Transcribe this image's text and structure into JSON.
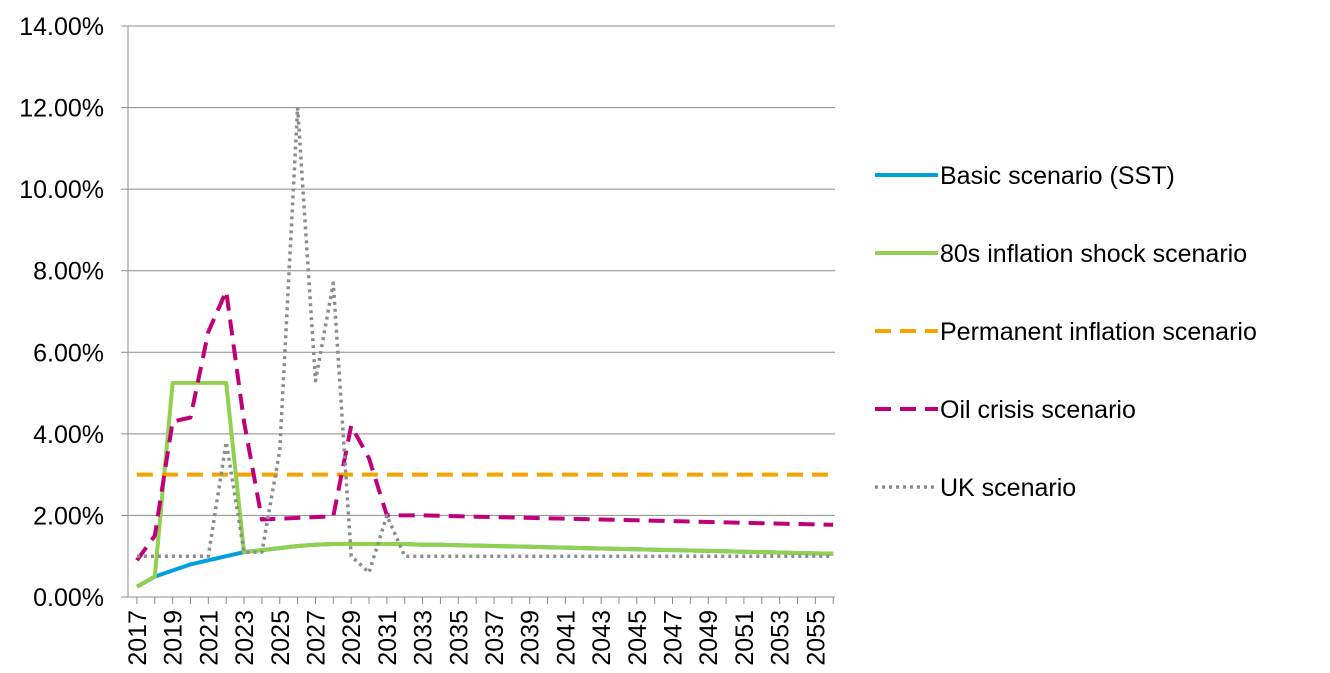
{
  "chart_data": {
    "type": "line",
    "title": "",
    "xlabel": "",
    "ylabel": "",
    "ylim": [
      0,
      0.14
    ],
    "y_ticks": [
      "0.00%",
      "2.00%",
      "4.00%",
      "6.00%",
      "8.00%",
      "10.00%",
      "12.00%",
      "14.00%"
    ],
    "x_tick_labels": [
      "2017",
      "2019",
      "2021",
      "2023",
      "2025",
      "2027",
      "2029",
      "2031",
      "2033",
      "2035",
      "2037",
      "2039",
      "2041",
      "2043",
      "2045",
      "2047",
      "2049",
      "2051",
      "2053",
      "2055"
    ],
    "x": [
      2017,
      2018,
      2019,
      2020,
      2021,
      2022,
      2023,
      2024,
      2025,
      2026,
      2027,
      2028,
      2029,
      2030,
      2031,
      2032,
      2033,
      2034,
      2035,
      2036,
      2037,
      2038,
      2039,
      2040,
      2041,
      2042,
      2043,
      2044,
      2045,
      2046,
      2047,
      2048,
      2049,
      2050,
      2051,
      2052,
      2053,
      2054,
      2055,
      2056
    ],
    "grid": "horizontal",
    "legend_position": "right",
    "series": [
      {
        "name": "Basic scenario (SST)",
        "color": "#00A0DC",
        "style": "solid",
        "values": [
          0.0025,
          0.005,
          0.0065,
          0.008,
          0.009,
          0.01,
          0.011,
          0.0115,
          0.012,
          0.0125,
          0.0128,
          0.013,
          0.013,
          0.013,
          0.013,
          0.013,
          0.0128,
          0.0128,
          0.0127,
          0.0126,
          0.0125,
          0.0124,
          0.0123,
          0.0122,
          0.0121,
          0.012,
          0.0119,
          0.0118,
          0.0117,
          0.0116,
          0.0115,
          0.0114,
          0.0113,
          0.0112,
          0.0111,
          0.011,
          0.0109,
          0.0108,
          0.0107,
          0.0106
        ]
      },
      {
        "name": "80s inflation shock scenario",
        "color": "#92D050",
        "style": "solid",
        "values": [
          0.0025,
          0.005,
          0.0525,
          0.0525,
          0.0525,
          0.0525,
          0.011,
          0.0115,
          0.012,
          0.0125,
          0.0128,
          0.013,
          0.013,
          0.013,
          0.013,
          0.013,
          0.0128,
          0.0128,
          0.0127,
          0.0126,
          0.0125,
          0.0124,
          0.0123,
          0.0122,
          0.0121,
          0.012,
          0.0119,
          0.0118,
          0.0117,
          0.0116,
          0.0115,
          0.0114,
          0.0113,
          0.0112,
          0.0111,
          0.011,
          0.0109,
          0.0108,
          0.0107,
          0.0106
        ]
      },
      {
        "name": "Permanent inflation scenario",
        "color": "#F5A300",
        "style": "dash",
        "values": [
          0.03,
          0.03,
          0.03,
          0.03,
          0.03,
          0.03,
          0.03,
          0.03,
          0.03,
          0.03,
          0.03,
          0.03,
          0.03,
          0.03,
          0.03,
          0.03,
          0.03,
          0.03,
          0.03,
          0.03,
          0.03,
          0.03,
          0.03,
          0.03,
          0.03,
          0.03,
          0.03,
          0.03,
          0.03,
          0.03,
          0.03,
          0.03,
          0.03,
          0.03,
          0.03,
          0.03,
          0.03,
          0.03,
          0.03,
          0.03
        ]
      },
      {
        "name": "Oil crisis scenario",
        "color": "#C0007A",
        "style": "dash",
        "values": [
          0.009,
          0.015,
          0.043,
          0.044,
          0.065,
          0.075,
          0.043,
          0.019,
          0.0192,
          0.0194,
          0.0196,
          0.0198,
          0.042,
          0.034,
          0.02,
          0.02,
          0.02,
          0.0199,
          0.0198,
          0.0197,
          0.0196,
          0.0195,
          0.0194,
          0.0193,
          0.0192,
          0.0191,
          0.019,
          0.0189,
          0.0188,
          0.0187,
          0.0186,
          0.0185,
          0.0184,
          0.0183,
          0.0182,
          0.0181,
          0.018,
          0.0179,
          0.0178,
          0.0177
        ]
      },
      {
        "name": "UK scenario",
        "color": "#8C8C8C",
        "style": "dot",
        "values": [
          0.01,
          0.01,
          0.01,
          0.01,
          0.01,
          0.038,
          0.011,
          0.011,
          0.036,
          0.12,
          0.053,
          0.077,
          0.01,
          0.006,
          0.02,
          0.01,
          0.01,
          0.01,
          0.01,
          0.01,
          0.01,
          0.01,
          0.01,
          0.01,
          0.01,
          0.01,
          0.01,
          0.01,
          0.01,
          0.01,
          0.01,
          0.01,
          0.01,
          0.01,
          0.01,
          0.01,
          0.01,
          0.01,
          0.01,
          0.01
        ]
      }
    ]
  }
}
